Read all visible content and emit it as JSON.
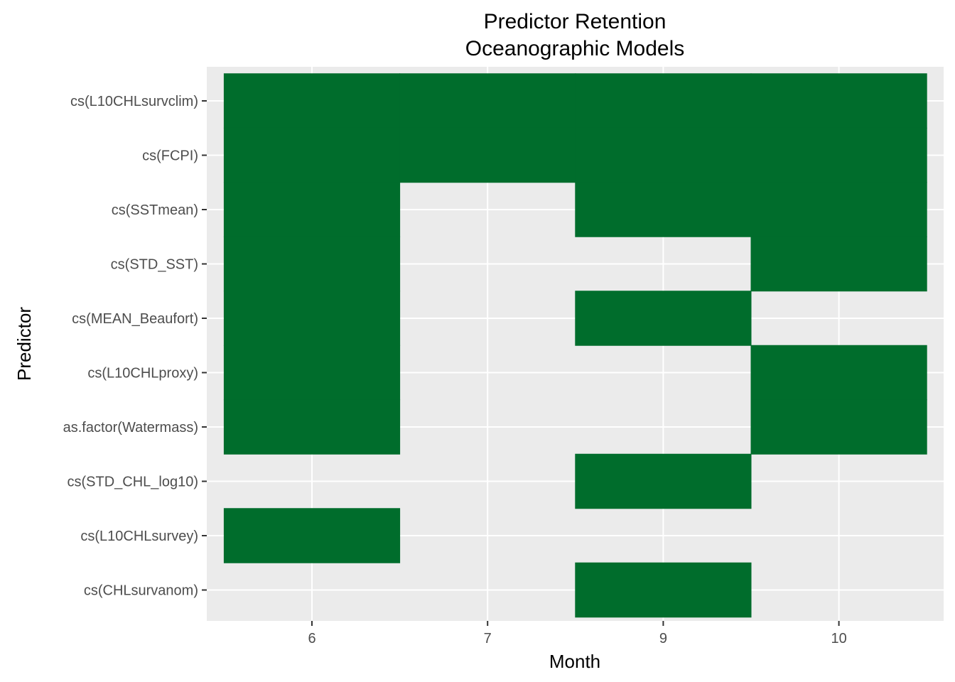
{
  "chart_data": {
    "type": "heatmap",
    "title": "Predictor Retention",
    "subtitle": "Oceanographic Models",
    "xlabel": "Month",
    "ylabel": "Predictor",
    "x_categories": [
      "6",
      "7",
      "9",
      "10"
    ],
    "y_categories": [
      "cs(L10CHLsurvclim)",
      "cs(FCPI)",
      "cs(SSTmean)",
      "cs(STD_SST)",
      "cs(MEAN_Beaufort)",
      "cs(L10CHLproxy)",
      "as.factor(Watermass)",
      "cs(STD_CHL_log10)",
      "cs(L10CHLsurvey)",
      "cs(CHLsurvanom)"
    ],
    "retained": [
      {
        "month": "6",
        "predictors": [
          "cs(L10CHLsurvclim)",
          "cs(FCPI)",
          "cs(SSTmean)",
          "cs(STD_SST)",
          "cs(MEAN_Beaufort)",
          "cs(L10CHLproxy)",
          "as.factor(Watermass)",
          "cs(L10CHLsurvey)"
        ]
      },
      {
        "month": "7",
        "predictors": [
          "cs(L10CHLsurvclim)",
          "cs(FCPI)"
        ]
      },
      {
        "month": "9",
        "predictors": [
          "cs(L10CHLsurvclim)",
          "cs(FCPI)",
          "cs(SSTmean)",
          "cs(MEAN_Beaufort)",
          "cs(STD_CHL_log10)",
          "cs(CHLsurvanom)"
        ]
      },
      {
        "month": "10",
        "predictors": [
          "cs(L10CHLsurvclim)",
          "cs(FCPI)",
          "cs(SSTmean)",
          "cs(STD_SST)",
          "cs(L10CHLproxy)",
          "as.factor(Watermass)"
        ]
      }
    ],
    "colors": {
      "tile": "#006d2c",
      "panel_background": "#ebebeb",
      "grid": "#ffffff",
      "tick_label": "#4d4d4d"
    },
    "grid": true,
    "legend": "none"
  }
}
